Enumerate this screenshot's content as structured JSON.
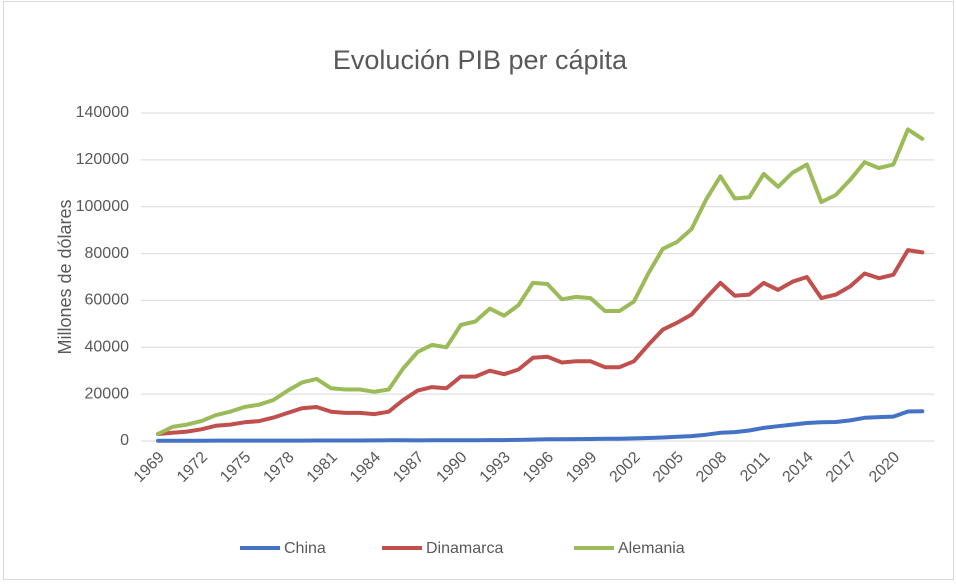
{
  "chart_data": {
    "type": "line",
    "title": "Evolución PIB per cápita",
    "y_label": "Millones de dólares",
    "categories": [
      "1969",
      null,
      null,
      "1972",
      null,
      null,
      "1975",
      null,
      null,
      "1978",
      null,
      null,
      "1981",
      null,
      null,
      "1984",
      null,
      null,
      "1987",
      null,
      null,
      "1990",
      null,
      null,
      "1993",
      null,
      null,
      "1996",
      null,
      null,
      "1999",
      null,
      null,
      "2002",
      null,
      null,
      "2005",
      null,
      null,
      "2008",
      null,
      null,
      "2011",
      null,
      null,
      "2014",
      null,
      null,
      "2017",
      null,
      null,
      "2020",
      null,
      null
    ],
    "series": [
      {
        "name": "China",
        "color": "#4472c4",
        "values": [
          110,
          120,
          120,
          130,
          160,
          170,
          180,
          160,
          180,
          160,
          180,
          200,
          200,
          200,
          200,
          250,
          300,
          280,
          250,
          280,
          310,
          320,
          330,
          370,
          380,
          470,
          610,
          710,
          780,
          830,
          870,
          960,
          1000,
          1100,
          1300,
          1500,
          1800,
          2100,
          2700,
          3500,
          3800,
          4500,
          5600,
          6300,
          7000,
          7700,
          8000,
          8100,
          8800,
          9900,
          10200,
          10400,
          12600,
          12700
        ]
      },
      {
        "name": "Dinamarca",
        "color": "#c0504d",
        "values": [
          3000,
          3500,
          4000,
          5000,
          6500,
          7000,
          8000,
          8500,
          10000,
          12000,
          14000,
          14500,
          12500,
          12000,
          12000,
          11500,
          12500,
          17500,
          21500,
          23000,
          22500,
          27500,
          27500,
          30000,
          28500,
          30500,
          35500,
          36000,
          33500,
          34000,
          34000,
          31500,
          31500,
          34000,
          41000,
          47500,
          50500,
          54000,
          61000,
          67500,
          62000,
          62500,
          67500,
          64500,
          68000,
          70000,
          61000,
          62500,
          66000,
          71500,
          69500,
          71000,
          81500,
          80500
        ]
      },
      {
        "name": "Alemania",
        "color": "#9bbb59",
        "values": [
          3000,
          6000,
          7000,
          8500,
          11000,
          12500,
          14500,
          15500,
          17500,
          21500,
          25000,
          26500,
          22500,
          22000,
          22000,
          21000,
          22000,
          31000,
          38000,
          41000,
          40000,
          49500,
          51000,
          56500,
          53500,
          58000,
          67500,
          67000,
          60500,
          61500,
          61000,
          55500,
          55500,
          59500,
          71500,
          82000,
          85000,
          90500,
          103000,
          113000,
          103500,
          104000,
          114000,
          108500,
          114500,
          118000,
          102000,
          105000,
          111500,
          119000,
          116500,
          118000,
          133000,
          129000
        ]
      }
    ],
    "ylim": [
      0,
      140000
    ],
    "yticks": [
      0,
      20000,
      40000,
      60000,
      80000,
      100000,
      120000,
      140000
    ],
    "grid": true,
    "legend": "bottom"
  }
}
